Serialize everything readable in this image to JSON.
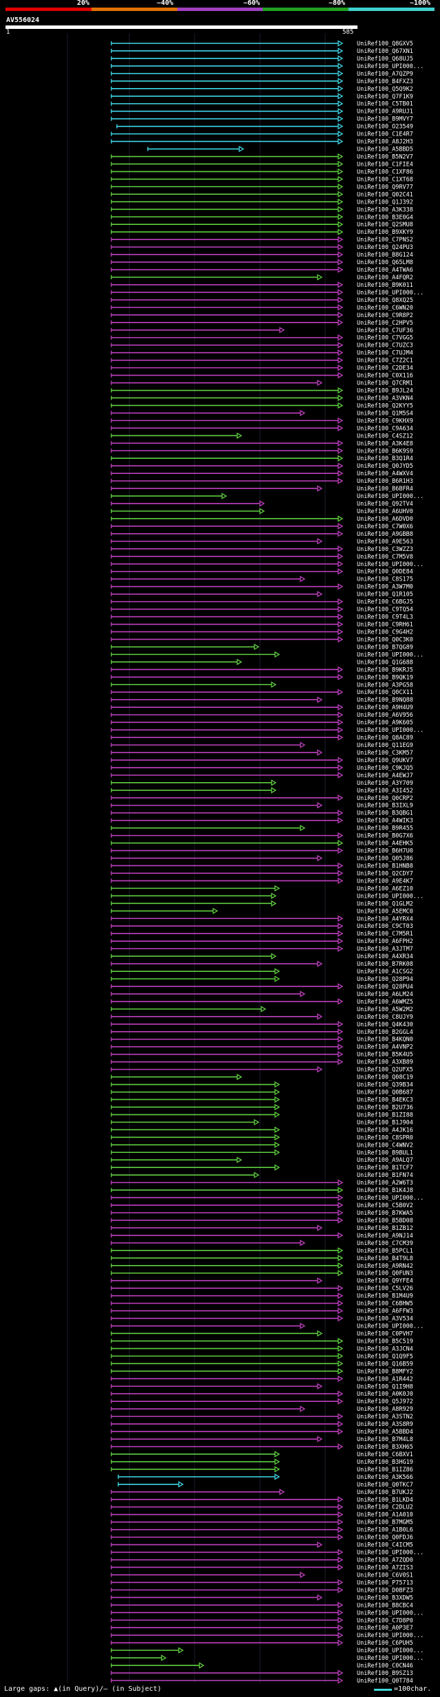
{
  "legend": {
    "colors": [
      "#e00000",
      "#e07000",
      "#a040c0",
      "#20a020",
      "#40d0d0"
    ],
    "labels": [
      "20%",
      "~40%",
      "~60%",
      "~80%",
      "~100%"
    ]
  },
  "query": {
    "name": "AV556024",
    "start": "1",
    "end": "585"
  },
  "footer": {
    "gaps_text": "Large gaps: ▲(in Query)/– (in Subject)",
    "scale_text": "=100char."
  },
  "hits": [
    "UniRef100_Q8GXV5",
    "UniRef100_Q67XN1",
    "UniRef100_Q68UJ5",
    "UniRef100_UPI000...",
    "UniRef100_A7QZP9",
    "UniRef100_B4FXZ3",
    "UniRef100_Q5Q9K2",
    "UniRef100_Q7F1K9",
    "UniRef100_C5TB01",
    "UniRef100_A9RUJ1",
    "UniRef100_B9MVY7",
    "UniRef100_O23549",
    "UniRef100_C1E4R7",
    "UniRef100_A8J2H3",
    "UniRef100_A5BBD5",
    "UniRef100_B5N2V7",
    "UniRef100_C1FIE4",
    "UniRef100_C1XF86",
    "UniRef100_C1XT68",
    "UniRef100_Q9RV77",
    "UniRef100_Q02C41",
    "UniRef100_Q1J392",
    "UniRef100_A3K338",
    "UniRef100_B3E0G4",
    "UniRef100_Q2SMU8",
    "UniRef100_B9XKY9",
    "UniRef100_C7PNS2",
    "UniRef100_Q24PU3",
    "UniRef100_B8G124",
    "UniRef100_Q65LM8",
    "UniRef100_A4TWA6",
    "UniRef100_A4FQR2",
    "UniRef100_B9K011",
    "UniRef100_UPI000...",
    "UniRef100_Q8XQ25",
    "UniRef100_C6WN20",
    "UniRef100_C9R8P2",
    "UniRef100_C2HPV5",
    "UniRef100_C7UF36",
    "UniRef100_C7VGG5",
    "UniRef100_C7UZC3",
    "UniRef100_C7UJM4",
    "UniRef100_C7Z2C1",
    "UniRef100_C2DE34",
    "UniRef100_C0X116",
    "UniRef100_Q7CRM1",
    "UniRef100_B9JL24",
    "UniRef100_A3VKN4",
    "UniRef100_Q2KYY5",
    "UniRef100_Q1M5S4",
    "UniRef100_C9KHX9",
    "UniRef100_C9A634",
    "UniRef100_C4SZ12",
    "UniRef100_A3K4E8",
    "UniRef100_B6K9S9",
    "UniRef100_B3Q1R4",
    "UniRef100_Q0JYD5",
    "UniRef100_A4WXV4",
    "UniRef100_B6R1H3",
    "UniRef100_B6BFR4",
    "UniRef100_UPI000...",
    "UniRef100_Q92TV4",
    "UniRef100_A6UHV0",
    "UniRef100_A6DVD0",
    "UniRef100_C7W0X6",
    "UniRef100_A9GBB8",
    "UniRef100_A9E563",
    "UniRef100_C3WZZ3",
    "UniRef100_C7M5V8",
    "UniRef100_UPI000...",
    "UniRef100_Q0DE84",
    "UniRef100_C8S175",
    "UniRef100_A3W7M0",
    "UniRef100_Q1R105",
    "UniRef100_C6BGJ5",
    "UniRef100_C9TQ54",
    "UniRef100_C9T4L3",
    "UniRef100_C9RH61",
    "UniRef100_C9G4H2",
    "UniRef100_Q0C3K0",
    "UniRef100_B7QG89",
    "UniRef100_UPI000...",
    "UniRef100_Q1G688",
    "UniRef100_B9KRJ5",
    "UniRef100_B9QK19",
    "UniRef100_A3PG58",
    "UniRef100_Q0CX11",
    "UniRef100_B9NQ88",
    "UniRef100_A9H4U9",
    "UniRef100_A6V956",
    "UniRef100_A9K605",
    "UniRef100_UPI000...",
    "UniRef100_Q8AC89",
    "UniRef100_Q11EG9",
    "UniRef100_C3KM57",
    "UniRef100_Q9UKV7",
    "UniRef100_C9KJQ5",
    "UniRef100_A4EWJ7",
    "UniRef100_A3Y709",
    "UniRef100_A3I452",
    "UniRef100_Q0CRP2",
    "UniRef100_B3IXL9",
    "UniRef100_B3QBG1",
    "UniRef100_A4WIK3",
    "UniRef100_B9R455",
    "UniRef100_B0G7X6",
    "UniRef100_A4EHK5",
    "UniRef100_B6H7U0",
    "UniRef100_Q05J86",
    "UniRef100_B1HNB8",
    "UniRef100_Q2CDY7",
    "UniRef100_A9E4K7",
    "UniRef100_A6EZ10",
    "UniRef100_UPI000...",
    "UniRef100_Q1GLM2",
    "UniRef100_A5EMC0",
    "UniRef100_A4YRX4",
    "UniRef100_C9CT03",
    "UniRef100_C7M5R1",
    "UniRef100_A6FPH2",
    "UniRef100_A3JTM7",
    "UniRef100_A4XR34",
    "UniRef100_B7RK08",
    "UniRef100_A1CSG2",
    "UniRef100_Q28P94",
    "UniRef100_Q28PU4",
    "UniRef100_A6LM24",
    "UniRef100_A6WMZ5",
    "UniRef100_A5W2M2",
    "UniRef100_C8UJY9",
    "UniRef100_Q4K430",
    "UniRef100_B2GGL4",
    "UniRef100_B4KQN0",
    "UniRef100_A4VNP2",
    "UniRef100_B5K4U5",
    "UniRef100_A3XB89",
    "UniRef100_Q2UFX5",
    "UniRef100_Q08C19",
    "UniRef100_Q39B34",
    "UniRef100_Q0B687",
    "UniRef100_B4EKC3",
    "UniRef100_B2U736",
    "UniRef100_B1ZI88",
    "UniRef100_B1J904",
    "UniRef100_A4JK16",
    "UniRef100_C8SPR0",
    "UniRef100_C4WNV2",
    "UniRef100_B9BUL1",
    "UniRef100_A9ALQ7",
    "UniRef100_B1TCF7",
    "UniRef100_B1FN74",
    "UniRef100_A2W6T3",
    "UniRef100_B1K4J8",
    "UniRef100_UPI000...",
    "UniRef100_C5B0V2",
    "UniRef100_B7KWA5",
    "UniRef100_B5BD08",
    "UniRef100_B1ZB12",
    "UniRef100_A9NJ14",
    "UniRef100_C7CM39",
    "UniRef100_B5PCL1",
    "UniRef100_B4T9L8",
    "UniRef100_A9RN42",
    "UniRef100_Q0FUN3",
    "UniRef100_Q9YFE4",
    "UniRef100_C5LV26",
    "UniRef100_B1M4U9",
    "UniRef100_C6BHW5",
    "UniRef100_A6FFW3",
    "UniRef100_A3V534",
    "UniRef100_UPI000...",
    "UniRef100_C0PVH7",
    "UniRef100_B5C519",
    "UniRef100_A3JCN4",
    "UniRef100_Q1Q9F5",
    "UniRef100_Q16B59",
    "UniRef100_B8MFY2",
    "UniRef100_A1R442",
    "UniRef100_Q1I9H8",
    "UniRef100_A0K0J0",
    "UniRef100_Q5J972",
    "UniRef100_A8R929",
    "UniRef100_A3STN2",
    "UniRef100_A3S8R9",
    "UniRef100_A5BBD4",
    "UniRef100_B7M4L8",
    "UniRef100_B3XH65",
    "UniRef100_C6BXV1",
    "UniRef100_B3HG19",
    "UniRef100_B1IZ86",
    "UniRef100_A3K566",
    "UniRef100_Q0TKC7",
    "UniRef100_B7UKJ2",
    "UniRef100_B1LKD4",
    "UniRef100_C2DLU2",
    "UniRef100_A1A010",
    "UniRef100_B7MGM5",
    "UniRef100_A1B0L6",
    "UniRef100_Q0FDJ6",
    "UniRef100_C4ICM5",
    "UniRef100_UPI000...",
    "UniRef100_A7ZQD0",
    "UniRef100_A7ZIS3",
    "UniRef100_C6V0S1",
    "UniRef100_P75713",
    "UniRef100_D0BFZ3",
    "UniRef100_B3XDW5",
    "UniRef100_B8CBC4",
    "UniRef100_UPI000...",
    "UniRef100_C7D8P0",
    "UniRef100_A0P3E7",
    "UniRef100_UPI000...",
    "UniRef100_C6PUH5",
    "UniRef100_UPI000...",
    "UniRef100_UPI000...",
    "UniRef100_C0CN46",
    "UniRef100_B9SZ13",
    "UniRef100_Q0T784"
  ]
}
